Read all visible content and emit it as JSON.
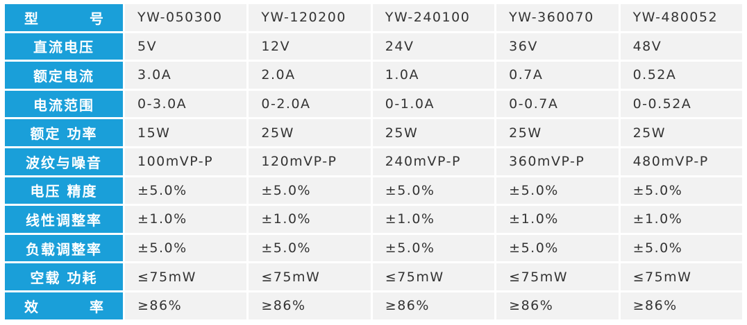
{
  "table": {
    "rows": [
      {
        "label": "型　　号",
        "spread": true,
        "values": [
          "YW-050300",
          "YW-120200",
          "YW-240100",
          "YW-360070",
          "YW-480052"
        ]
      },
      {
        "label": "直流电压",
        "values": [
          "5V",
          "12V",
          "24V",
          "36V",
          "48V"
        ]
      },
      {
        "label": "额定电流",
        "values": [
          "3.0A",
          "2.0A",
          "1.0A",
          "0.7A",
          "0.52A"
        ]
      },
      {
        "label": "电流范围",
        "values": [
          "0-3.0A",
          "0-2.0A",
          "0-1.0A",
          "0-0.7A",
          "0-0.52A"
        ]
      },
      {
        "label": "额定 功率",
        "values": [
          "15W",
          "25W",
          "25W",
          "25W",
          "25W"
        ]
      },
      {
        "label": "波纹与噪音",
        "values": [
          "100mVP-P",
          "120mVP-P",
          "240mVP-P",
          "360mVP-P",
          "480mVP-P"
        ]
      },
      {
        "label": "电压 精度",
        "values": [
          "±5.0%",
          "±5.0%",
          "±5.0%",
          "±5.0%",
          "±5.0%"
        ]
      },
      {
        "label": "线性调整率",
        "values": [
          "±1.0%",
          "±1.0%",
          "±1.0%",
          "±1.0%",
          "±1.0%"
        ]
      },
      {
        "label": "负载调整率",
        "values": [
          "±5.0%",
          "±5.0%",
          "±5.0%",
          "±5.0%",
          "±5.0%"
        ]
      },
      {
        "label": "空载 功耗",
        "values": [
          "≤75mW",
          "≤75mW",
          "≤75mW",
          "≤75mW",
          "≤75mW"
        ]
      },
      {
        "label": "效　　率",
        "spread": true,
        "values": [
          "≥86%",
          "≥86%",
          "≥86%",
          "≥86%",
          "≥86%"
        ]
      }
    ]
  },
  "colors": {
    "header_bg": "#1a9fd9",
    "cell_bg": "#f2f2f2",
    "text": "#333333"
  }
}
